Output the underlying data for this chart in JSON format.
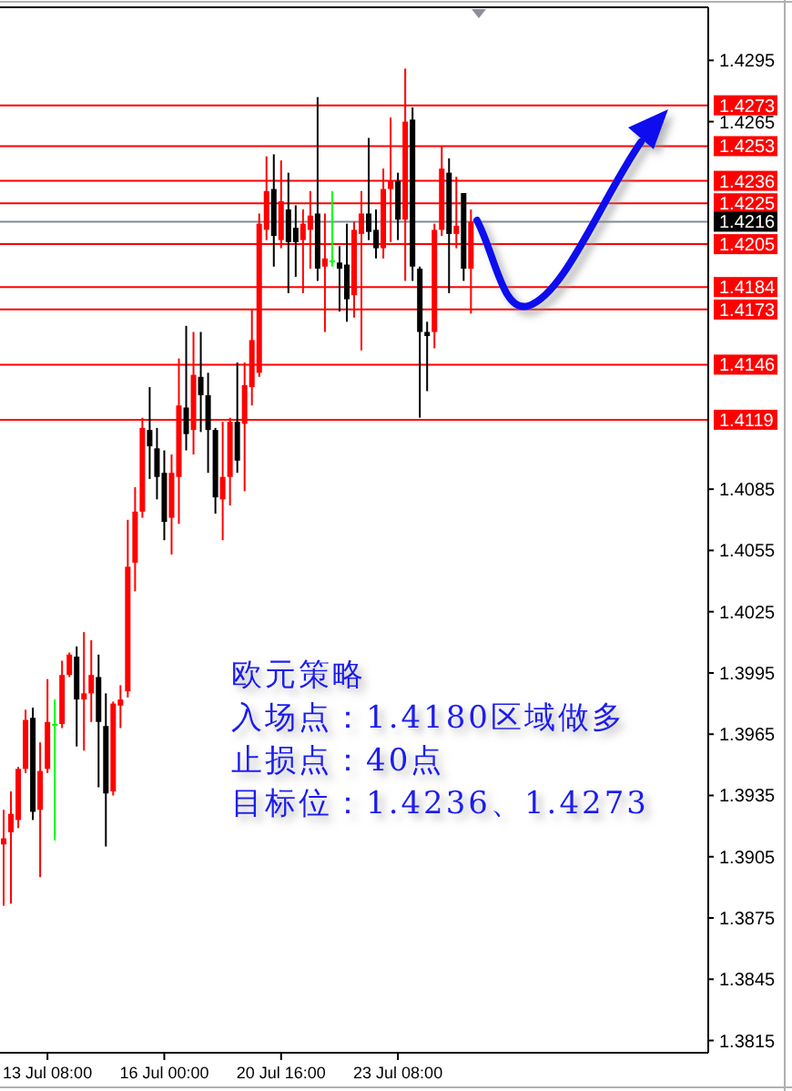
{
  "chart_data": {
    "type": "candlestick",
    "categories": [
      null,
      null,
      null,
      null,
      null,
      null,
      "13 Jul 08:00",
      null,
      null,
      null,
      null,
      null,
      null,
      null,
      null,
      null,
      null,
      null,
      null,
      null,
      null,
      null,
      "16 Jul 00:00",
      null,
      null,
      null,
      null,
      null,
      null,
      null,
      null,
      null,
      null,
      null,
      null,
      null,
      null,
      null,
      "20 Jul 16:00",
      null,
      null,
      null,
      null,
      null,
      null,
      null,
      null,
      null,
      null,
      null,
      null,
      null,
      null,
      null,
      "23 Jul 08:00",
      null,
      null,
      null,
      null,
      null,
      null,
      null,
      null,
      null,
      null,
      null,
      null,
      null,
      null,
      null,
      null,
      null,
      null,
      null,
      null,
      null,
      null,
      null,
      null,
      null,
      null,
      null,
      null,
      null,
      null,
      null,
      null,
      null,
      null,
      null,
      null,
      null,
      null,
      null,
      null,
      null,
      null
    ],
    "ohlc": [
      [
        1.3911,
        1.3928,
        1.3881,
        1.3914
      ],
      [
        1.3917,
        1.3937,
        1.3882,
        1.3926
      ],
      [
        1.3923,
        1.3949,
        1.3919,
        1.3948
      ],
      [
        1.3948,
        1.3977,
        1.3946,
        1.3972
      ],
      [
        1.3973,
        1.3978,
        1.3923,
        1.3927
      ],
      [
        1.3928,
        1.3961,
        1.3895,
        1.3947
      ],
      [
        1.3948,
        1.3992,
        1.3946,
        1.3971
      ],
      [
        1.397,
        1.3982,
        1.3913,
        1.397
      ],
      [
        1.397,
        1.4001,
        1.3968,
        1.3994
      ],
      [
        1.3994,
        1.4005,
        1.3993,
        1.4004
      ],
      [
        1.4003,
        1.4008,
        1.3959,
        1.3982
      ],
      [
        1.3982,
        1.4015,
        1.3957,
        1.3985
      ],
      [
        1.3985,
        1.4011,
        1.3971,
        1.3994
      ],
      [
        1.3993,
        1.4004,
        1.3939,
        1.3971
      ],
      [
        1.3969,
        1.3985,
        1.391,
        1.3936
      ],
      [
        1.3937,
        1.3981,
        1.3935,
        1.398
      ],
      [
        1.3979,
        1.3989,
        1.3968,
        1.3982
      ],
      [
        1.3986,
        1.407,
        1.3983,
        1.4047
      ],
      [
        1.4049,
        1.4086,
        1.4035,
        1.4074
      ],
      [
        1.4074,
        1.412,
        1.4071,
        1.4115
      ],
      [
        1.4114,
        1.4135,
        1.409,
        1.4106
      ],
      [
        1.4105,
        1.4115,
        1.408,
        1.4091
      ],
      [
        1.4093,
        1.4104,
        1.406,
        1.4069
      ],
      [
        1.4071,
        1.4102,
        1.4053,
        1.4093
      ],
      [
        1.4091,
        1.4149,
        1.4068,
        1.4126
      ],
      [
        1.4125,
        1.4165,
        1.4104,
        1.4112
      ],
      [
        1.4114,
        1.4162,
        1.4102,
        1.4141
      ],
      [
        1.414,
        1.4162,
        1.4113,
        1.4131
      ],
      [
        1.4131,
        1.4142,
        1.4093,
        1.4114
      ],
      [
        1.4114,
        1.4115,
        1.4073,
        1.4081
      ],
      [
        1.408,
        1.4118,
        1.406,
        1.4091
      ],
      [
        1.4091,
        1.412,
        1.4077,
        1.4118
      ],
      [
        1.4118,
        1.4147,
        1.4093,
        1.4099
      ],
      [
        1.4117,
        1.4147,
        1.4084,
        1.4136
      ],
      [
        1.4135,
        1.4173,
        1.4126,
        1.4158
      ],
      [
        1.4142,
        1.422,
        1.414,
        1.4215
      ],
      [
        1.4212,
        1.4248,
        1.4207,
        1.4231
      ],
      [
        1.4232,
        1.4249,
        1.4194,
        1.4209
      ],
      [
        1.4207,
        1.4246,
        1.4203,
        1.4226
      ],
      [
        1.4222,
        1.424,
        1.4181,
        1.4206
      ],
      [
        1.4213,
        1.4224,
        1.4189,
        1.4206
      ],
      [
        1.4207,
        1.4222,
        1.4181,
        1.4215
      ],
      [
        1.4212,
        1.4231,
        1.4193,
        1.4219
      ],
      [
        1.422,
        1.4277,
        1.4187,
        1.4193
      ],
      [
        1.4194,
        1.422,
        1.4162,
        1.4198
      ],
      [
        1.4197,
        1.4231,
        1.4194,
        1.4197
      ],
      [
        1.4196,
        1.4204,
        1.4172,
        1.4193
      ],
      [
        1.4195,
        1.4215,
        1.4167,
        1.4178
      ],
      [
        1.418,
        1.4216,
        1.4169,
        1.4212
      ],
      [
        1.421,
        1.4231,
        1.4153,
        1.422
      ],
      [
        1.422,
        1.4257,
        1.4207,
        1.4211
      ],
      [
        1.4212,
        1.4222,
        1.4198,
        1.4203
      ],
      [
        1.4203,
        1.4242,
        1.4198,
        1.4232
      ],
      [
        1.4232,
        1.4267,
        1.4206,
        1.4236
      ],
      [
        1.4236,
        1.424,
        1.4207,
        1.4217
      ],
      [
        1.4217,
        1.4291,
        1.4187,
        1.4265
      ],
      [
        1.4266,
        1.4272,
        1.4187,
        1.4194
      ],
      [
        1.4193,
        1.4194,
        1.412,
        1.4162
      ],
      [
        1.4162,
        1.4167,
        1.4133,
        1.416
      ],
      [
        1.4162,
        1.4215,
        1.4154,
        1.4212
      ],
      [
        1.4212,
        1.4253,
        1.4209,
        1.4242
      ],
      [
        1.424,
        1.4247,
        1.4181,
        1.421
      ],
      [
        1.421,
        1.4238,
        1.4203,
        1.4214
      ],
      [
        1.423,
        1.423,
        1.4187,
        1.4193
      ],
      [
        1.4193,
        1.4222,
        1.4171,
        1.4216
      ],
      null,
      null,
      null,
      null,
      null,
      null,
      null,
      null,
      null,
      null,
      null,
      null,
      null,
      null,
      null,
      null,
      null,
      null,
      null,
      null,
      null,
      null,
      null,
      null,
      null,
      null,
      null,
      null,
      null,
      null,
      null,
      null
    ],
    "colors": [
      "#ff0000",
      "#ff0000",
      "#ff0000",
      "#ff0000",
      "#000000",
      "#ff0000",
      "#ff0000",
      "#00ff00",
      "#ff0000",
      "#ff0000",
      "#000000",
      "#ff0000",
      "#ff0000",
      "#000000",
      "#000000",
      "#ff0000",
      "#ff0000",
      "#ff0000",
      "#ff0000",
      "#ff0000",
      "#000000",
      "#000000",
      "#000000",
      "#ff0000",
      "#ff0000",
      "#000000",
      "#ff0000",
      "#000000",
      "#000000",
      "#000000",
      "#ff0000",
      "#ff0000",
      "#000000",
      "#ff0000",
      "#ff0000",
      "#ff0000",
      "#ff0000",
      "#000000",
      "#ff0000",
      "#000000",
      "#000000",
      "#ff0000",
      "#ff0000",
      "#000000",
      "#ff0000",
      "#00ff00",
      "#000000",
      "#000000",
      "#ff0000",
      "#ff0000",
      "#000000",
      "#000000",
      "#ff0000",
      "#ff0000",
      "#000000",
      "#ff0000",
      "#000000",
      "#000000",
      "#000000",
      "#ff0000",
      "#ff0000",
      "#000000",
      "#ff0000",
      "#000000",
      "#ff0000",
      null,
      null,
      null,
      null,
      null,
      null,
      null,
      null,
      null,
      null,
      null,
      null,
      null,
      null,
      null,
      null,
      null,
      null,
      null,
      null,
      null,
      null,
      null,
      null,
      null,
      null,
      null,
      null,
      null,
      null,
      null,
      null
    ],
    "ylim": [
      1.3809,
      1.4321
    ],
    "yticks": [
      1.4295,
      1.4265,
      1.4085,
      1.4055,
      1.4025,
      1.3995,
      1.3965,
      1.3935,
      1.3905,
      1.3875,
      1.3845,
      1.3815
    ],
    "ref_lines": [
      {
        "axis": "y",
        "value": 1.4273,
        "label": "1.4273",
        "color": "#ff0000"
      },
      {
        "axis": "y",
        "value": 1.4253,
        "label": "1.4253",
        "color": "#ff0000"
      },
      {
        "axis": "y",
        "value": 1.4236,
        "label": "1.4236",
        "color": "#ff0000"
      },
      {
        "axis": "y",
        "value": 1.4225,
        "label": "1.4225",
        "color": "#ff0000"
      },
      {
        "axis": "y",
        "value": 1.4216,
        "label": "1.4216",
        "color": "#808a94"
      },
      {
        "axis": "y",
        "value": 1.4205,
        "label": "1.4205",
        "color": "#ff0000"
      },
      {
        "axis": "y",
        "value": 1.4184,
        "label": "1.4184",
        "color": "#ff0000"
      },
      {
        "axis": "y",
        "value": 1.4173,
        "label": "1.4173",
        "color": "#ff0000"
      },
      {
        "axis": "y",
        "value": 1.4146,
        "label": "1.4146",
        "color": "#ff0000"
      },
      {
        "axis": "y",
        "value": 1.4119,
        "label": "1.4119",
        "color": "#ff0000"
      }
    ],
    "annotations": [
      "欧元策略",
      "入场点：1.4180区域做多",
      "止损点：40点",
      "目标位：1.4236、1.4273"
    ]
  }
}
